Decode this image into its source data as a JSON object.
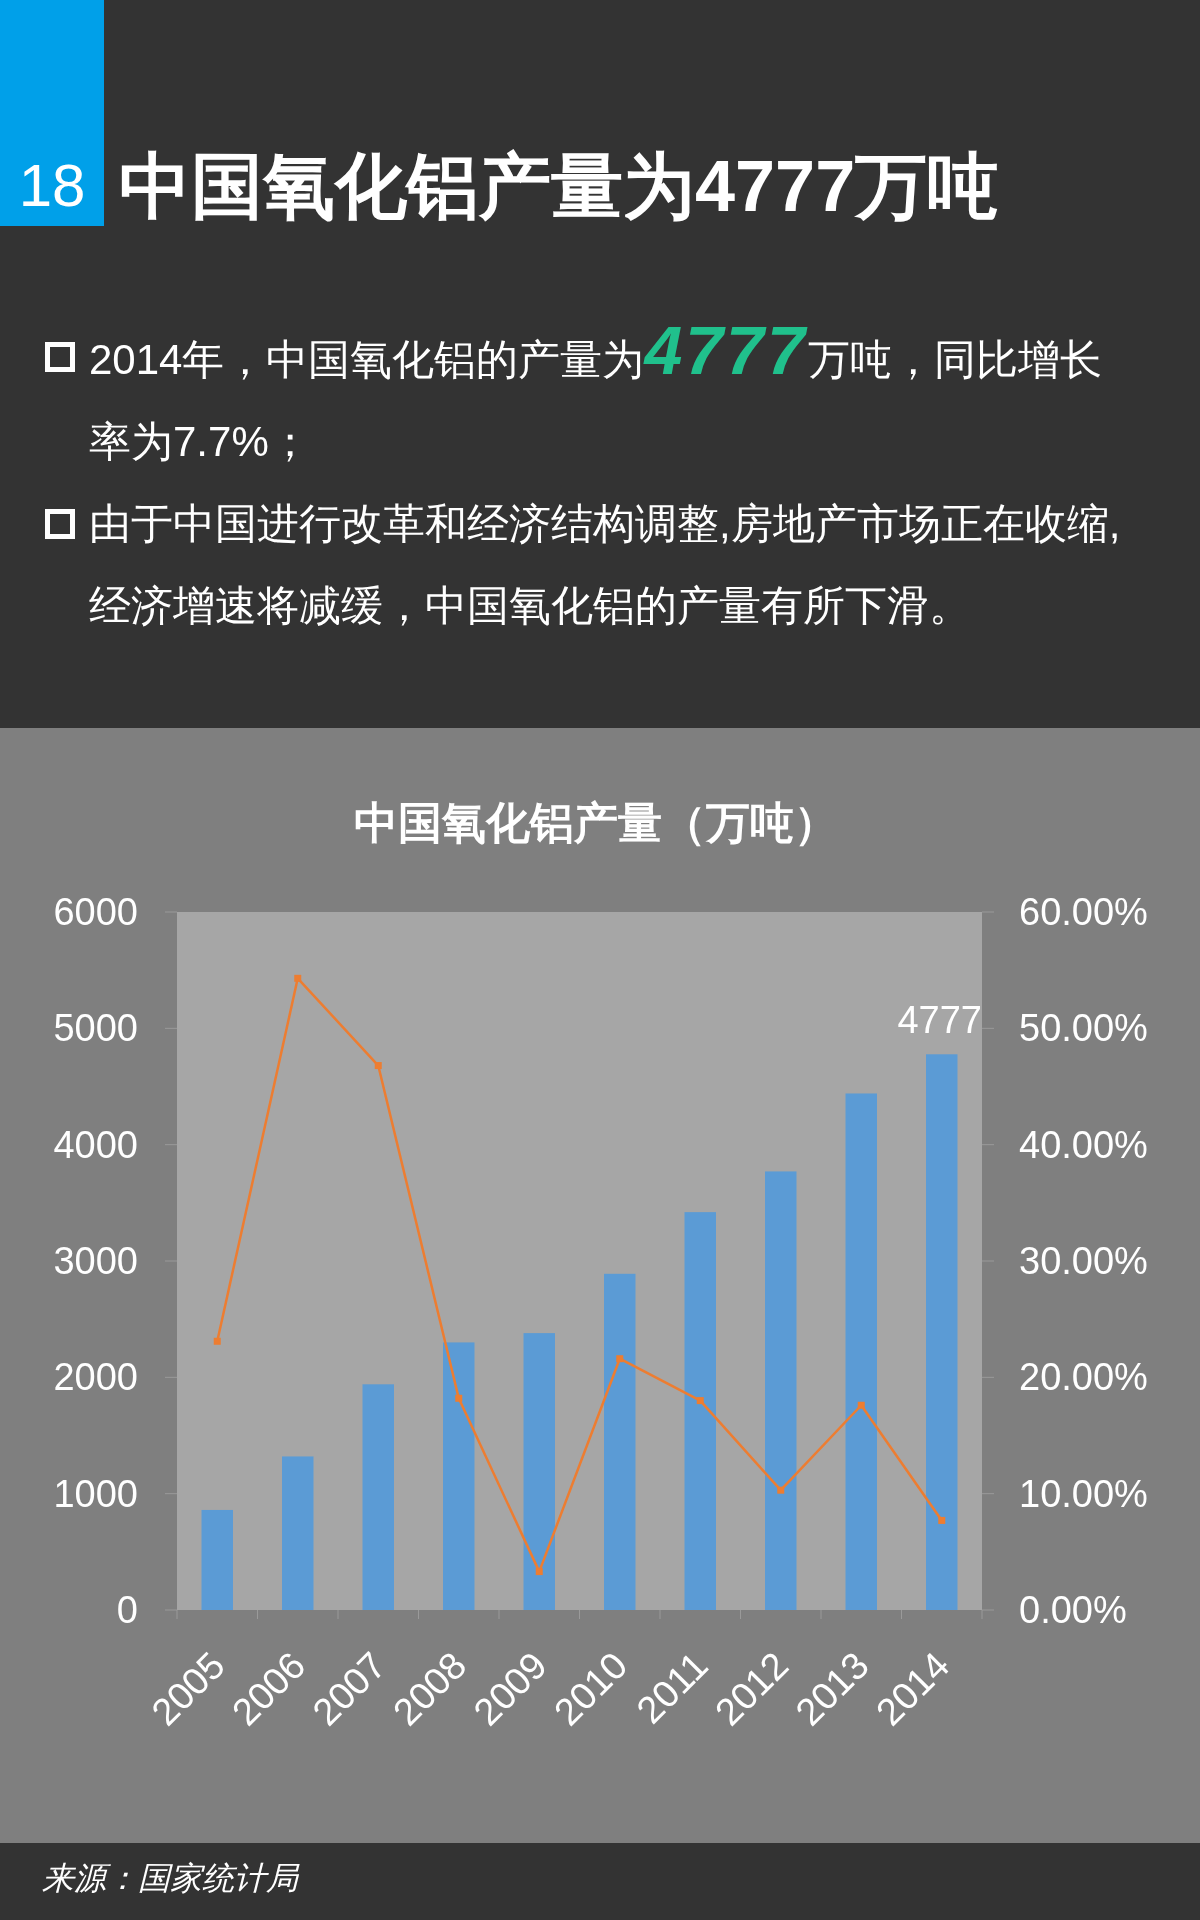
{
  "chart_data": {
    "type": "bar",
    "title": "中国氧化铝产量为4777万吨",
    "subtitle": "中国氧化铝产量（万吨）",
    "categories": [
      "2005",
      "2006",
      "2007",
      "2008",
      "2009",
      "2010",
      "2011",
      "2012",
      "2013",
      "2014"
    ],
    "series": [
      {
        "color": "#5b9bd5",
        "values": [
          860,
          1320,
          1940,
          2300,
          2380,
          2890,
          3420,
          3770,
          4440,
          4777
        ],
        "value_labels": [
          null,
          null,
          null,
          null,
          null,
          null,
          null,
          null,
          null,
          "4777"
        ]
      },
      {
        "type": "line",
        "axis": "y2",
        "color": "#ed7d31",
        "values": [
          23.1,
          54.3,
          46.8,
          18.2,
          3.3,
          21.6,
          18.0,
          10.3,
          17.6,
          7.7
        ]
      }
    ],
    "ylim": [
      0,
      6000
    ],
    "yticks": [
      0,
      1000,
      2000,
      3000,
      4000,
      5000,
      6000
    ],
    "y2lim": [
      0,
      60
    ],
    "y2ticks": [
      {
        "value": 0,
        "label": "0.00%"
      },
      {
        "value": 10,
        "label": "10.00%"
      },
      {
        "value": 20,
        "label": "20.00%"
      },
      {
        "value": 30,
        "label": "30.00%"
      },
      {
        "value": 40,
        "label": "40.00%"
      },
      {
        "value": 50,
        "label": "50.00%"
      },
      {
        "value": 60,
        "label": "60.00%"
      }
    ],
    "marker": "square",
    "annotations": [
      "18",
      "2014年，中国氧化铝的产量为**4777**万吨，同比增长率为7.7%；",
      "由于中国进行改革和经济结构调整,房地产市场正在收缩,经济增速将减缓，中国氧化铝的产量有所下滑。",
      "来源：国家统计局"
    ]
  }
}
